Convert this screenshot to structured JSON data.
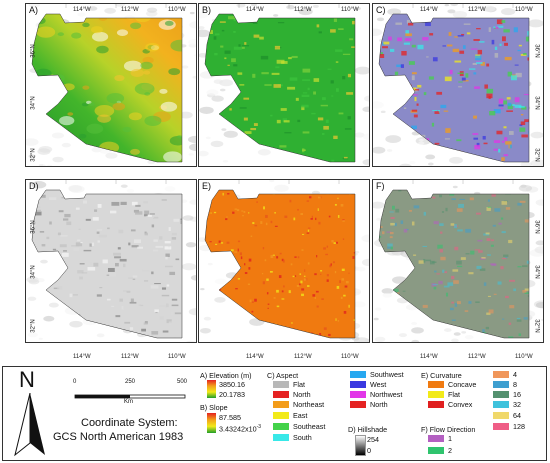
{
  "panels": [
    {
      "id": "A",
      "label": "A)",
      "style": "elevation"
    },
    {
      "id": "B",
      "label": "B)",
      "style": "slope"
    },
    {
      "id": "C",
      "label": "C)",
      "style": "aspect"
    },
    {
      "id": "D",
      "label": "D)",
      "style": "hillshade"
    },
    {
      "id": "E",
      "label": "E)",
      "style": "curvature"
    },
    {
      "id": "F",
      "label": "F)",
      "style": "flowdir"
    }
  ],
  "lon_ticks": [
    "114°W",
    "112°W",
    "110°W"
  ],
  "lat_ticks": [
    "36°N",
    "34°N",
    "32°N"
  ],
  "legend": {
    "north": "N",
    "scale_ticks": [
      "0",
      "250",
      "500"
    ],
    "scale_unit": "Km",
    "coord_title": "Coordinate System:",
    "coord_name": "GCS North American 1983",
    "elevation": {
      "title": "A) Elevation (m)",
      "max": "3850.16",
      "min": "20.1783"
    },
    "slope": {
      "title": "B) Slope",
      "max": "87.585",
      "min": "3.43242x10",
      "min_exp": "-3"
    },
    "aspect": {
      "title": "C) Aspect",
      "items": [
        {
          "label": "Flat",
          "color": "#b8b8b8"
        },
        {
          "label": "North",
          "color": "#e52222"
        },
        {
          "label": "Northeast",
          "color": "#f39c19"
        },
        {
          "label": "East",
          "color": "#f2ea19"
        },
        {
          "label": "Southeast",
          "color": "#43d24a"
        },
        {
          "label": "South",
          "color": "#38e8e8"
        },
        {
          "label": "Southwest",
          "color": "#27a8f0"
        },
        {
          "label": "West",
          "color": "#3a38e0"
        },
        {
          "label": "Northwest",
          "color": "#e236e8"
        },
        {
          "label": "North",
          "color": "#e52222"
        }
      ]
    },
    "hillshade": {
      "title": "D) Hillshade",
      "max": "254",
      "min": "0"
    },
    "curvature": {
      "title": "E) Curvature",
      "items": [
        {
          "label": "Concave",
          "color": "#f07a10"
        },
        {
          "label": "Flat",
          "color": "#f2ea19"
        },
        {
          "label": "Convex",
          "color": "#e01f1f"
        }
      ]
    },
    "flow": {
      "title": "F) Flow Direction",
      "items": [
        {
          "label": "1",
          "color": "#b460c2"
        },
        {
          "label": "2",
          "color": "#2fc46e"
        },
        {
          "label": "4",
          "color": "#f0965a"
        },
        {
          "label": "8",
          "color": "#3e9fd0"
        },
        {
          "label": "16",
          "color": "#54916f"
        },
        {
          "label": "32",
          "color": "#3fc2dc"
        },
        {
          "label": "64",
          "color": "#f0d86a"
        },
        {
          "label": "128",
          "color": "#ef5d86"
        }
      ]
    }
  }
}
